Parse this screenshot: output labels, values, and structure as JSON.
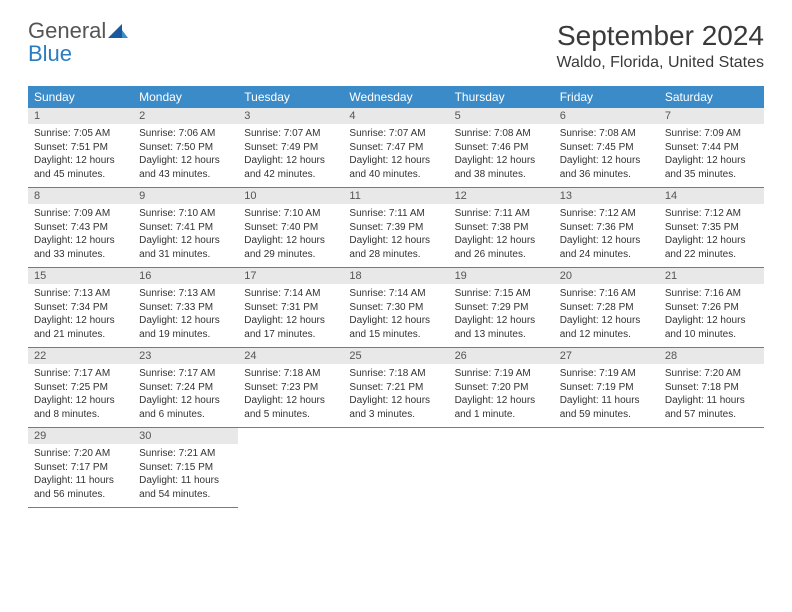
{
  "logo": {
    "general": "General",
    "blue": "Blue"
  },
  "header": {
    "month_title": "September 2024",
    "location": "Waldo, Florida, United States"
  },
  "colors": {
    "header_bg": "#3b8bc9",
    "header_text": "#ffffff",
    "daynum_bg": "#e8e8e8",
    "border": "#3b8bc9"
  },
  "weekdays": [
    "Sunday",
    "Monday",
    "Tuesday",
    "Wednesday",
    "Thursday",
    "Friday",
    "Saturday"
  ],
  "weeks": [
    [
      {
        "n": "1",
        "sr": "Sunrise: 7:05 AM",
        "ss": "Sunset: 7:51 PM",
        "dl": "Daylight: 12 hours and 45 minutes."
      },
      {
        "n": "2",
        "sr": "Sunrise: 7:06 AM",
        "ss": "Sunset: 7:50 PM",
        "dl": "Daylight: 12 hours and 43 minutes."
      },
      {
        "n": "3",
        "sr": "Sunrise: 7:07 AM",
        "ss": "Sunset: 7:49 PM",
        "dl": "Daylight: 12 hours and 42 minutes."
      },
      {
        "n": "4",
        "sr": "Sunrise: 7:07 AM",
        "ss": "Sunset: 7:47 PM",
        "dl": "Daylight: 12 hours and 40 minutes."
      },
      {
        "n": "5",
        "sr": "Sunrise: 7:08 AM",
        "ss": "Sunset: 7:46 PM",
        "dl": "Daylight: 12 hours and 38 minutes."
      },
      {
        "n": "6",
        "sr": "Sunrise: 7:08 AM",
        "ss": "Sunset: 7:45 PM",
        "dl": "Daylight: 12 hours and 36 minutes."
      },
      {
        "n": "7",
        "sr": "Sunrise: 7:09 AM",
        "ss": "Sunset: 7:44 PM",
        "dl": "Daylight: 12 hours and 35 minutes."
      }
    ],
    [
      {
        "n": "8",
        "sr": "Sunrise: 7:09 AM",
        "ss": "Sunset: 7:43 PM",
        "dl": "Daylight: 12 hours and 33 minutes."
      },
      {
        "n": "9",
        "sr": "Sunrise: 7:10 AM",
        "ss": "Sunset: 7:41 PM",
        "dl": "Daylight: 12 hours and 31 minutes."
      },
      {
        "n": "10",
        "sr": "Sunrise: 7:10 AM",
        "ss": "Sunset: 7:40 PM",
        "dl": "Daylight: 12 hours and 29 minutes."
      },
      {
        "n": "11",
        "sr": "Sunrise: 7:11 AM",
        "ss": "Sunset: 7:39 PM",
        "dl": "Daylight: 12 hours and 28 minutes."
      },
      {
        "n": "12",
        "sr": "Sunrise: 7:11 AM",
        "ss": "Sunset: 7:38 PM",
        "dl": "Daylight: 12 hours and 26 minutes."
      },
      {
        "n": "13",
        "sr": "Sunrise: 7:12 AM",
        "ss": "Sunset: 7:36 PM",
        "dl": "Daylight: 12 hours and 24 minutes."
      },
      {
        "n": "14",
        "sr": "Sunrise: 7:12 AM",
        "ss": "Sunset: 7:35 PM",
        "dl": "Daylight: 12 hours and 22 minutes."
      }
    ],
    [
      {
        "n": "15",
        "sr": "Sunrise: 7:13 AM",
        "ss": "Sunset: 7:34 PM",
        "dl": "Daylight: 12 hours and 21 minutes."
      },
      {
        "n": "16",
        "sr": "Sunrise: 7:13 AM",
        "ss": "Sunset: 7:33 PM",
        "dl": "Daylight: 12 hours and 19 minutes."
      },
      {
        "n": "17",
        "sr": "Sunrise: 7:14 AM",
        "ss": "Sunset: 7:31 PM",
        "dl": "Daylight: 12 hours and 17 minutes."
      },
      {
        "n": "18",
        "sr": "Sunrise: 7:14 AM",
        "ss": "Sunset: 7:30 PM",
        "dl": "Daylight: 12 hours and 15 minutes."
      },
      {
        "n": "19",
        "sr": "Sunrise: 7:15 AM",
        "ss": "Sunset: 7:29 PM",
        "dl": "Daylight: 12 hours and 13 minutes."
      },
      {
        "n": "20",
        "sr": "Sunrise: 7:16 AM",
        "ss": "Sunset: 7:28 PM",
        "dl": "Daylight: 12 hours and 12 minutes."
      },
      {
        "n": "21",
        "sr": "Sunrise: 7:16 AM",
        "ss": "Sunset: 7:26 PM",
        "dl": "Daylight: 12 hours and 10 minutes."
      }
    ],
    [
      {
        "n": "22",
        "sr": "Sunrise: 7:17 AM",
        "ss": "Sunset: 7:25 PM",
        "dl": "Daylight: 12 hours and 8 minutes."
      },
      {
        "n": "23",
        "sr": "Sunrise: 7:17 AM",
        "ss": "Sunset: 7:24 PM",
        "dl": "Daylight: 12 hours and 6 minutes."
      },
      {
        "n": "24",
        "sr": "Sunrise: 7:18 AM",
        "ss": "Sunset: 7:23 PM",
        "dl": "Daylight: 12 hours and 5 minutes."
      },
      {
        "n": "25",
        "sr": "Sunrise: 7:18 AM",
        "ss": "Sunset: 7:21 PM",
        "dl": "Daylight: 12 hours and 3 minutes."
      },
      {
        "n": "26",
        "sr": "Sunrise: 7:19 AM",
        "ss": "Sunset: 7:20 PM",
        "dl": "Daylight: 12 hours and 1 minute."
      },
      {
        "n": "27",
        "sr": "Sunrise: 7:19 AM",
        "ss": "Sunset: 7:19 PM",
        "dl": "Daylight: 11 hours and 59 minutes."
      },
      {
        "n": "28",
        "sr": "Sunrise: 7:20 AM",
        "ss": "Sunset: 7:18 PM",
        "dl": "Daylight: 11 hours and 57 minutes."
      }
    ],
    [
      {
        "n": "29",
        "sr": "Sunrise: 7:20 AM",
        "ss": "Sunset: 7:17 PM",
        "dl": "Daylight: 11 hours and 56 minutes."
      },
      {
        "n": "30",
        "sr": "Sunrise: 7:21 AM",
        "ss": "Sunset: 7:15 PM",
        "dl": "Daylight: 11 hours and 54 minutes."
      },
      null,
      null,
      null,
      null,
      null
    ]
  ]
}
